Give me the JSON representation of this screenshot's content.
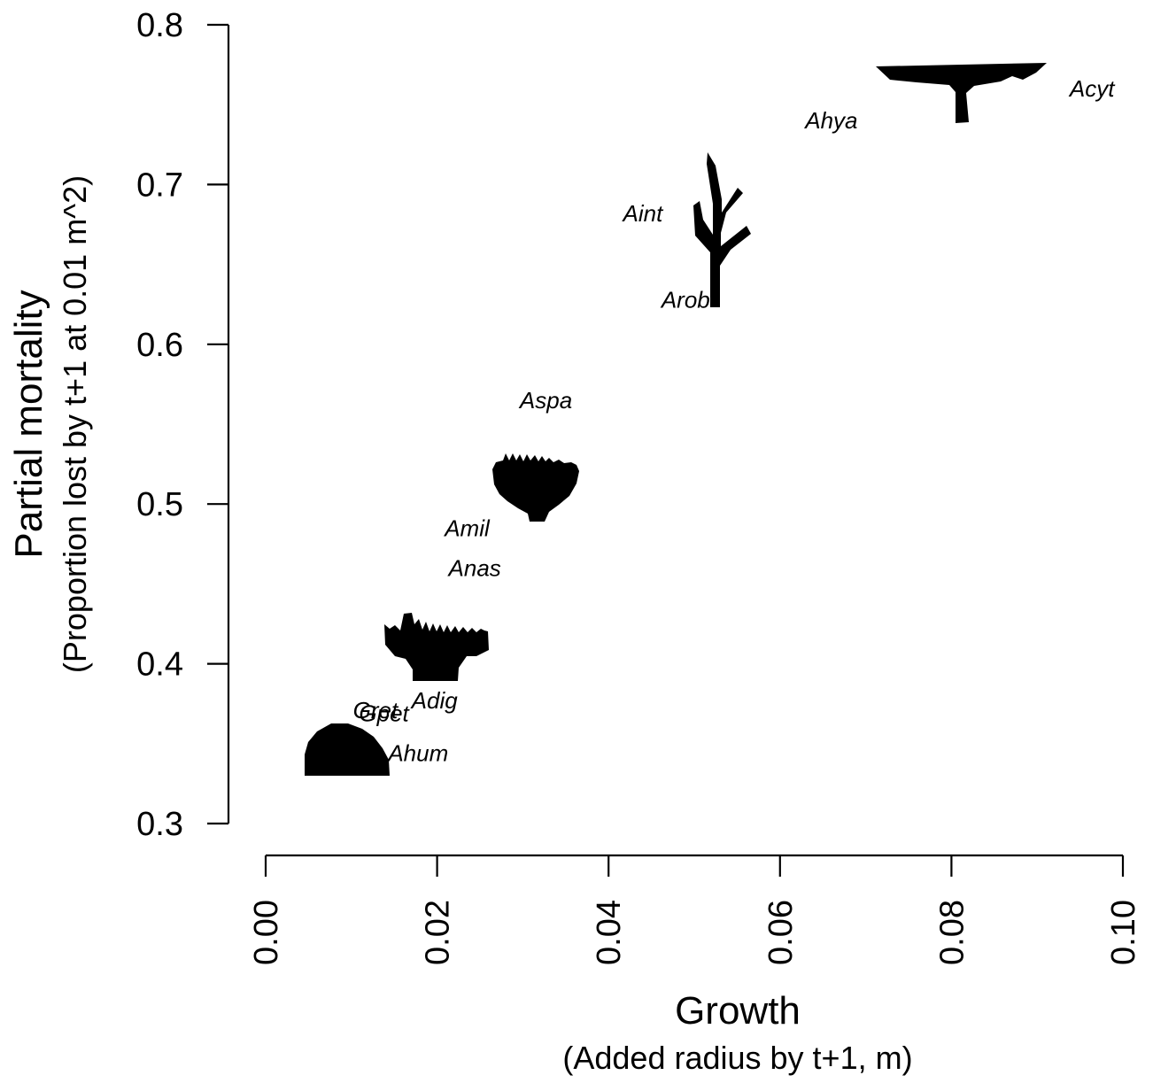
{
  "chart_data": {
    "type": "scatter",
    "title": "",
    "xlabel": "Growth",
    "xlabel_sub": "(Added radius by t+1, m)",
    "ylabel": "Partial mortality",
    "ylabel_sub": "(Proportion lost by t+1 at 0.01 m^2)",
    "xlim": [
      0,
      0.1
    ],
    "ylim": [
      0.3,
      0.8
    ],
    "x_ticks": [
      "0.00",
      "0.02",
      "0.04",
      "0.06",
      "0.08",
      "0.10"
    ],
    "y_ticks": [
      "0.3",
      "0.4",
      "0.5",
      "0.6",
      "0.7",
      "0.8"
    ],
    "grid": false,
    "points": [
      {
        "label": "Acyt",
        "x": 0.0964,
        "y": 0.76
      },
      {
        "label": "Ahya",
        "x": 0.066,
        "y": 0.74
      },
      {
        "label": "Aint",
        "x": 0.044,
        "y": 0.682
      },
      {
        "label": "Arob",
        "x": 0.049,
        "y": 0.628
      },
      {
        "label": "Aspa",
        "x": 0.0327,
        "y": 0.565
      },
      {
        "label": "Amil",
        "x": 0.0235,
        "y": 0.485
      },
      {
        "label": "Anas",
        "x": 0.0244,
        "y": 0.46
      },
      {
        "label": "Adig",
        "x": 0.0197,
        "y": 0.377
      },
      {
        "label": "Gret",
        "x": 0.0128,
        "y": 0.371
      },
      {
        "label": "Gpet",
        "x": 0.0138,
        "y": 0.369
      },
      {
        "label": "Ahum",
        "x": 0.0178,
        "y": 0.344
      }
    ],
    "silhouettes": [
      {
        "name": "tabular",
        "x": 0.0812,
        "y": 0.765
      },
      {
        "name": "branching",
        "x": 0.0525,
        "y": 0.67
      },
      {
        "name": "corymbose",
        "x": 0.0315,
        "y": 0.515
      },
      {
        "name": "digitate",
        "x": 0.0195,
        "y": 0.41
      },
      {
        "name": "massive",
        "x": 0.0093,
        "y": 0.347
      }
    ]
  }
}
